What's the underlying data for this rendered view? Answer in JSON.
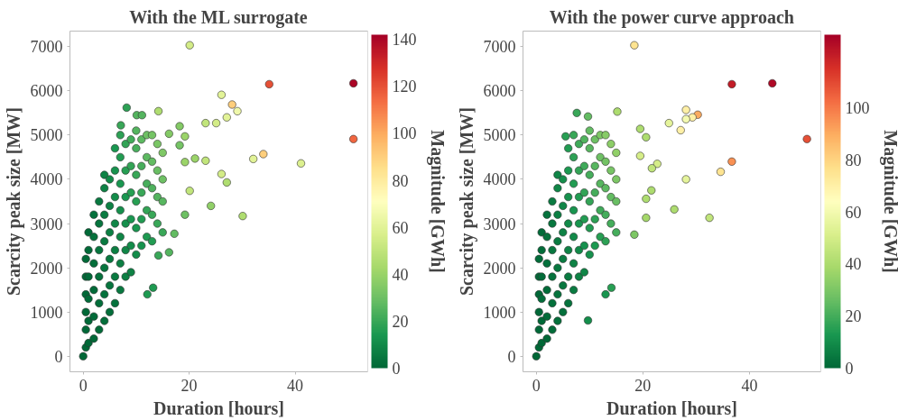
{
  "chart_data": [
    {
      "type": "scatter",
      "title": "With the ML surrogate",
      "xlabel": "Duration [hours]",
      "ylabel": "Scarcity peak size [MW]",
      "clabel": "Magnitude [GWh]",
      "marker": "circle",
      "xlim": [
        -2.5,
        53.7
      ],
      "ylim": [
        -350,
        7350
      ],
      "xticks": [
        0,
        20,
        40
      ],
      "yticks": [
        0,
        1000,
        2000,
        3000,
        4000,
        5000,
        6000,
        7000
      ],
      "clim": [
        0,
        142
      ],
      "cticks": [
        0,
        20,
        40,
        60,
        80,
        100,
        120,
        140
      ],
      "x": [
        20.1,
        35.1,
        51.0,
        51.0,
        26.1,
        28.1,
        29.1,
        27.1,
        23.1,
        25.1,
        34.0,
        32.1,
        41.1,
        30.1,
        24.1,
        26.1,
        27.1,
        23.1,
        21.1,
        20.1,
        19.2,
        19.2,
        18.2,
        14.2,
        8.2,
        10.1,
        11.1,
        7.1,
        18.2,
        16.2,
        19.2,
        14.2,
        16.2,
        12.1,
        13.2,
        17.2,
        0,
        0.5,
        0.5,
        0.5,
        0.5,
        0.5,
        0.5,
        1,
        1,
        1,
        1,
        1,
        1,
        2,
        2,
        2,
        2,
        2,
        2,
        3,
        3,
        3,
        3,
        3,
        3,
        4,
        4,
        4,
        4,
        4,
        4,
        4,
        5,
        5,
        5,
        5,
        5,
        5,
        6,
        6,
        6,
        6,
        6,
        6,
        6,
        7,
        7,
        7,
        7,
        7,
        7,
        7,
        8,
        8,
        8,
        8,
        8,
        8,
        9,
        9,
        9,
        9,
        9,
        9,
        10,
        10,
        10,
        10,
        10,
        10,
        11,
        11,
        11,
        11,
        11,
        12,
        12,
        12,
        12,
        12,
        13,
        13,
        13,
        13,
        13,
        14,
        14,
        14,
        14,
        15,
        15,
        15,
        15
      ],
      "values": [
        7030,
        6150,
        6170,
        4910,
        5910,
        5690,
        5540,
        5400,
        5270,
        5270,
        4570,
        4460,
        4360,
        3170,
        3400,
        4120,
        3930,
        4420,
        4470,
        3740,
        4390,
        4970,
        5200,
        5540,
        5620,
        5450,
        5450,
        5220,
        4770,
        5030,
        3200,
        2280,
        2350,
        1400,
        1550,
        2770,
        0,
        200,
        600,
        1000,
        1400,
        1800,
        2200,
        300,
        800,
        1300,
        1800,
        2400,
        2800,
        400,
        900,
        1500,
        2100,
        2700,
        3200,
        600,
        1200,
        1800,
        2400,
        3000,
        3500,
        800,
        1400,
        2000,
        2600,
        3200,
        3800,
        4100,
        1000,
        1600,
        2200,
        2800,
        3400,
        4000,
        1200,
        1800,
        2400,
        3000,
        3600,
        4200,
        4700,
        1500,
        2100,
        2700,
        3300,
        3900,
        4500,
        5000,
        1800,
        2400,
        3000,
        3600,
        4200,
        4800,
        1900,
        2500,
        3100,
        3700,
        4300,
        4900,
        2300,
        2900,
        3500,
        4100,
        4700,
        5100,
        2500,
        3100,
        3700,
        4300,
        4900,
        2700,
        3300,
        3900,
        4500,
        5000,
        2600,
        3200,
        3800,
        4400,
        5000,
        3000,
        3600,
        4200,
        4800,
        2800,
        3500,
        4000,
        4600
      ],
      "cvalues": [
        55,
        120,
        140,
        115,
        60,
        90,
        65,
        60,
        50,
        55,
        90,
        60,
        58,
        45,
        38,
        55,
        45,
        50,
        40,
        50,
        40,
        40,
        35,
        45,
        18,
        25,
        25,
        20,
        32,
        35,
        30,
        20,
        25,
        15,
        15,
        28,
        0,
        0,
        0,
        0,
        0,
        1,
        1,
        0,
        0,
        1,
        1,
        1,
        1,
        0,
        1,
        1,
        2,
        3,
        3,
        1,
        2,
        3,
        4,
        4,
        5,
        2,
        3,
        4,
        5,
        6,
        8,
        8,
        2,
        4,
        5,
        7,
        8,
        10,
        3,
        5,
        7,
        9,
        11,
        13,
        14,
        5,
        7,
        9,
        12,
        14,
        16,
        18,
        7,
        9,
        12,
        14,
        17,
        19,
        8,
        11,
        14,
        17,
        19,
        22,
        11,
        14,
        17,
        20,
        23,
        25,
        13,
        16,
        20,
        23,
        27,
        15,
        19,
        23,
        27,
        30,
        16,
        20,
        24,
        28,
        32,
        20,
        25,
        29,
        33,
        20,
        26,
        30,
        34
      ]
    },
    {
      "type": "scatter",
      "title": "With the power curve approach",
      "xlabel": "Duration [hours]",
      "ylabel": "Scarcity peak size [MW]",
      "clabel": "Magnitude [GWh]",
      "marker": "circle",
      "xlim": [
        -2.5,
        53.4
      ],
      "ylim": [
        -350,
        7350
      ],
      "xticks": [
        0,
        20,
        40
      ],
      "yticks": [
        0,
        1000,
        2000,
        3000,
        4000,
        5000,
        6000,
        7000
      ],
      "clim": [
        0,
        128
      ],
      "cticks": [
        0,
        20,
        40,
        60,
        80,
        100
      ],
      "x": [
        18.4,
        36.7,
        44.3,
        50.8,
        28.1,
        30.3,
        29.3,
        28.1,
        24.9,
        27.1,
        36.7,
        34.6,
        28.1,
        32.5,
        25.9,
        22.7,
        21.7,
        19.5,
        19.5,
        20.6,
        15.2,
        7.6,
        9.7,
        5.5,
        18.4,
        14.1,
        13.0,
        9.7,
        0,
        21.6,
        20.6,
        20.6,
        0.5,
        0.5,
        0.5,
        0.5,
        0.5,
        0.5,
        1,
        1,
        1,
        1,
        1,
        1,
        2,
        2,
        2,
        2,
        2,
        2,
        3,
        3,
        3,
        3,
        3,
        3,
        4,
        4,
        4,
        4,
        4,
        4,
        4,
        5,
        5,
        5,
        5,
        5,
        5,
        6,
        6,
        6,
        6,
        6,
        6,
        6,
        7,
        7,
        7,
        7,
        7,
        7,
        7,
        8,
        8,
        8,
        8,
        8,
        8,
        9,
        9,
        9,
        9,
        9,
        9,
        10,
        10,
        10,
        10,
        10,
        10,
        11,
        11,
        11,
        11,
        11,
        12,
        12,
        12,
        12,
        12,
        13,
        13,
        13,
        13,
        13,
        14,
        14,
        14,
        14,
        15,
        15,
        15,
        15
      ],
      "values": [
        7030,
        6150,
        6170,
        4910,
        5570,
        5460,
        5400,
        5360,
        5270,
        5110,
        4400,
        4170,
        4000,
        3130,
        3320,
        4350,
        4250,
        4530,
        5140,
        4950,
        5530,
        5500,
        5420,
        4970,
        2750,
        1550,
        1400,
        810,
        0,
        3750,
        3560,
        3130,
        200,
        600,
        1000,
        1400,
        1800,
        2200,
        300,
        800,
        1300,
        1800,
        2400,
        2800,
        400,
        900,
        1500,
        2100,
        2700,
        3200,
        600,
        1200,
        1800,
        2400,
        3000,
        3500,
        800,
        1400,
        2000,
        2600,
        3200,
        3800,
        4100,
        1000,
        1600,
        2200,
        2800,
        3400,
        4000,
        1200,
        1800,
        2400,
        3000,
        3600,
        4200,
        4700,
        1500,
        2100,
        2700,
        3300,
        3900,
        4500,
        5000,
        1800,
        2400,
        3000,
        3600,
        4200,
        4800,
        1900,
        2500,
        3100,
        3700,
        4300,
        4900,
        2300,
        2900,
        3500,
        4100,
        4700,
        5100,
        2500,
        3100,
        3700,
        4300,
        4900,
        2700,
        3300,
        3900,
        4500,
        5000,
        2600,
        3200,
        3800,
        4400,
        5000,
        3000,
        3600,
        4200,
        4800,
        2800,
        3500,
        4000,
        4600
      ],
      "cvalues": [
        75,
        120,
        125,
        108,
        70,
        90,
        70,
        60,
        55,
        70,
        95,
        75,
        55,
        45,
        40,
        50,
        45,
        50,
        40,
        40,
        40,
        18,
        25,
        15,
        30,
        15,
        12,
        10,
        0,
        40,
        40,
        38,
        0,
        0,
        0,
        0,
        1,
        1,
        0,
        0,
        1,
        1,
        1,
        1,
        0,
        1,
        1,
        2,
        3,
        3,
        1,
        2,
        3,
        4,
        4,
        5,
        2,
        3,
        4,
        5,
        6,
        8,
        8,
        2,
        4,
        5,
        7,
        8,
        10,
        3,
        5,
        7,
        9,
        11,
        13,
        14,
        5,
        7,
        9,
        12,
        14,
        16,
        18,
        7,
        9,
        12,
        14,
        17,
        19,
        8,
        11,
        14,
        17,
        19,
        22,
        11,
        14,
        17,
        20,
        23,
        25,
        13,
        16,
        20,
        23,
        27,
        15,
        19,
        23,
        27,
        30,
        16,
        20,
        24,
        28,
        32,
        20,
        25,
        29,
        33,
        20,
        26,
        30,
        34
      ]
    }
  ]
}
